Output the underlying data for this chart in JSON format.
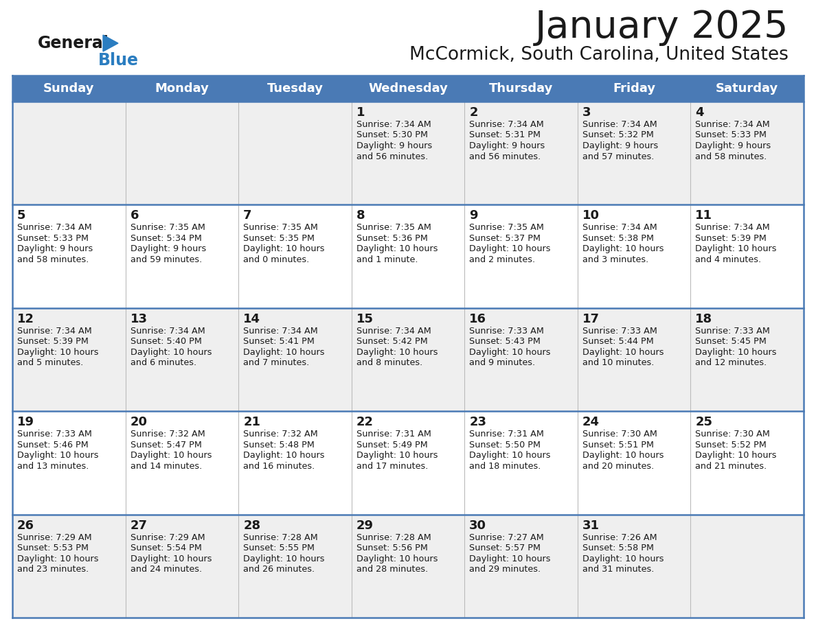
{
  "title": "January 2025",
  "subtitle": "McCormick, South Carolina, United States",
  "header_color": "#4a7ab5",
  "header_text_color": "#FFFFFF",
  "day_names": [
    "Sunday",
    "Monday",
    "Tuesday",
    "Wednesday",
    "Thursday",
    "Friday",
    "Saturday"
  ],
  "bg_color": "#FFFFFF",
  "cell_bg_row0": "#EFEFEF",
  "cell_bg_row1": "#FFFFFF",
  "cell_bg_row2": "#EFEFEF",
  "cell_bg_row3": "#FFFFFF",
  "cell_bg_row4": "#EFEFEF",
  "row_line_color": "#4a7ab5",
  "title_color": "#1a1a1a",
  "subtitle_color": "#1a1a1a",
  "text_color": "#1a1a1a",
  "logo_general_color": "#1a1a1a",
  "logo_blue_color": "#2b7dc0",
  "logo_triangle_color": "#2b7dc0",
  "days": [
    {
      "day": 1,
      "col": 3,
      "row": 0,
      "sunrise": "7:34 AM",
      "sunset": "5:30 PM",
      "daylight": "9 hours and 56 minutes."
    },
    {
      "day": 2,
      "col": 4,
      "row": 0,
      "sunrise": "7:34 AM",
      "sunset": "5:31 PM",
      "daylight": "9 hours and 56 minutes."
    },
    {
      "day": 3,
      "col": 5,
      "row": 0,
      "sunrise": "7:34 AM",
      "sunset": "5:32 PM",
      "daylight": "9 hours and 57 minutes."
    },
    {
      "day": 4,
      "col": 6,
      "row": 0,
      "sunrise": "7:34 AM",
      "sunset": "5:33 PM",
      "daylight": "9 hours and 58 minutes."
    },
    {
      "day": 5,
      "col": 0,
      "row": 1,
      "sunrise": "7:34 AM",
      "sunset": "5:33 PM",
      "daylight": "9 hours and 58 minutes."
    },
    {
      "day": 6,
      "col": 1,
      "row": 1,
      "sunrise": "7:35 AM",
      "sunset": "5:34 PM",
      "daylight": "9 hours and 59 minutes."
    },
    {
      "day": 7,
      "col": 2,
      "row": 1,
      "sunrise": "7:35 AM",
      "sunset": "5:35 PM",
      "daylight": "10 hours and 0 minutes."
    },
    {
      "day": 8,
      "col": 3,
      "row": 1,
      "sunrise": "7:35 AM",
      "sunset": "5:36 PM",
      "daylight": "10 hours and 1 minute."
    },
    {
      "day": 9,
      "col": 4,
      "row": 1,
      "sunrise": "7:35 AM",
      "sunset": "5:37 PM",
      "daylight": "10 hours and 2 minutes."
    },
    {
      "day": 10,
      "col": 5,
      "row": 1,
      "sunrise": "7:34 AM",
      "sunset": "5:38 PM",
      "daylight": "10 hours and 3 minutes."
    },
    {
      "day": 11,
      "col": 6,
      "row": 1,
      "sunrise": "7:34 AM",
      "sunset": "5:39 PM",
      "daylight": "10 hours and 4 minutes."
    },
    {
      "day": 12,
      "col": 0,
      "row": 2,
      "sunrise": "7:34 AM",
      "sunset": "5:39 PM",
      "daylight": "10 hours and 5 minutes."
    },
    {
      "day": 13,
      "col": 1,
      "row": 2,
      "sunrise": "7:34 AM",
      "sunset": "5:40 PM",
      "daylight": "10 hours and 6 minutes."
    },
    {
      "day": 14,
      "col": 2,
      "row": 2,
      "sunrise": "7:34 AM",
      "sunset": "5:41 PM",
      "daylight": "10 hours and 7 minutes."
    },
    {
      "day": 15,
      "col": 3,
      "row": 2,
      "sunrise": "7:34 AM",
      "sunset": "5:42 PM",
      "daylight": "10 hours and 8 minutes."
    },
    {
      "day": 16,
      "col": 4,
      "row": 2,
      "sunrise": "7:33 AM",
      "sunset": "5:43 PM",
      "daylight": "10 hours and 9 minutes."
    },
    {
      "day": 17,
      "col": 5,
      "row": 2,
      "sunrise": "7:33 AM",
      "sunset": "5:44 PM",
      "daylight": "10 hours and 10 minutes."
    },
    {
      "day": 18,
      "col": 6,
      "row": 2,
      "sunrise": "7:33 AM",
      "sunset": "5:45 PM",
      "daylight": "10 hours and 12 minutes."
    },
    {
      "day": 19,
      "col": 0,
      "row": 3,
      "sunrise": "7:33 AM",
      "sunset": "5:46 PM",
      "daylight": "10 hours and 13 minutes."
    },
    {
      "day": 20,
      "col": 1,
      "row": 3,
      "sunrise": "7:32 AM",
      "sunset": "5:47 PM",
      "daylight": "10 hours and 14 minutes."
    },
    {
      "day": 21,
      "col": 2,
      "row": 3,
      "sunrise": "7:32 AM",
      "sunset": "5:48 PM",
      "daylight": "10 hours and 16 minutes."
    },
    {
      "day": 22,
      "col": 3,
      "row": 3,
      "sunrise": "7:31 AM",
      "sunset": "5:49 PM",
      "daylight": "10 hours and 17 minutes."
    },
    {
      "day": 23,
      "col": 4,
      "row": 3,
      "sunrise": "7:31 AM",
      "sunset": "5:50 PM",
      "daylight": "10 hours and 18 minutes."
    },
    {
      "day": 24,
      "col": 5,
      "row": 3,
      "sunrise": "7:30 AM",
      "sunset": "5:51 PM",
      "daylight": "10 hours and 20 minutes."
    },
    {
      "day": 25,
      "col": 6,
      "row": 3,
      "sunrise": "7:30 AM",
      "sunset": "5:52 PM",
      "daylight": "10 hours and 21 minutes."
    },
    {
      "day": 26,
      "col": 0,
      "row": 4,
      "sunrise": "7:29 AM",
      "sunset": "5:53 PM",
      "daylight": "10 hours and 23 minutes."
    },
    {
      "day": 27,
      "col": 1,
      "row": 4,
      "sunrise": "7:29 AM",
      "sunset": "5:54 PM",
      "daylight": "10 hours and 24 minutes."
    },
    {
      "day": 28,
      "col": 2,
      "row": 4,
      "sunrise": "7:28 AM",
      "sunset": "5:55 PM",
      "daylight": "10 hours and 26 minutes."
    },
    {
      "day": 29,
      "col": 3,
      "row": 4,
      "sunrise": "7:28 AM",
      "sunset": "5:56 PM",
      "daylight": "10 hours and 28 minutes."
    },
    {
      "day": 30,
      "col": 4,
      "row": 4,
      "sunrise": "7:27 AM",
      "sunset": "5:57 PM",
      "daylight": "10 hours and 29 minutes."
    },
    {
      "day": 31,
      "col": 5,
      "row": 4,
      "sunrise": "7:26 AM",
      "sunset": "5:58 PM",
      "daylight": "10 hours and 31 minutes."
    }
  ],
  "cell_bgs": [
    "#EFEFEF",
    "#FFFFFF",
    "#EFEFEF",
    "#FFFFFF",
    "#EFEFEF"
  ]
}
